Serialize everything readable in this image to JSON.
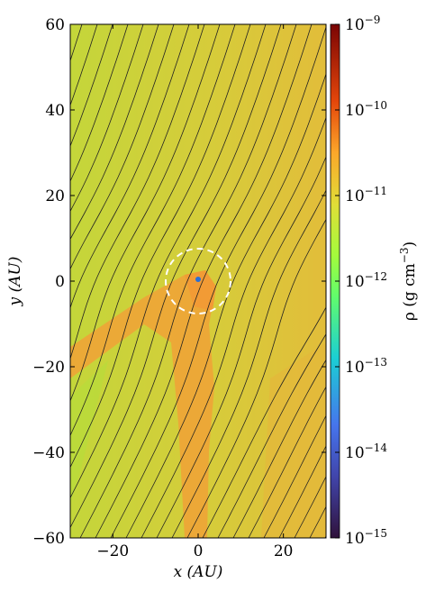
{
  "chart_data": {
    "type": "heatmap",
    "xlabel": "x (AU)",
    "ylabel": "y (AU)",
    "xlim": [
      -30,
      30
    ],
    "xticks": [
      {
        "value": -20,
        "label": "−20"
      },
      0,
      20
    ],
    "ylim": [
      -60,
      60
    ],
    "yticks": [
      {
        "value": -60,
        "label": "−60"
      },
      {
        "value": -40,
        "label": "−40"
      },
      {
        "value": -20,
        "label": "−20"
      },
      0,
      20,
      40,
      60
    ],
    "colorbar": {
      "label": "ρ (g cm−3)",
      "log": true,
      "lim": [
        1e-15,
        1e-09
      ],
      "ticks": [
        {
          "value": 1e-15,
          "label": "10−15"
        },
        {
          "value": 1e-14,
          "label": "10−14"
        },
        {
          "value": 1e-13,
          "label": "10−13"
        },
        {
          "value": 1e-12,
          "label": "10−12"
        },
        {
          "value": 1e-11,
          "label": "10−11"
        },
        {
          "value": 1e-10,
          "label": "10−10"
        },
        {
          "value": 1e-09,
          "label": "10−9"
        }
      ]
    }
  }
}
